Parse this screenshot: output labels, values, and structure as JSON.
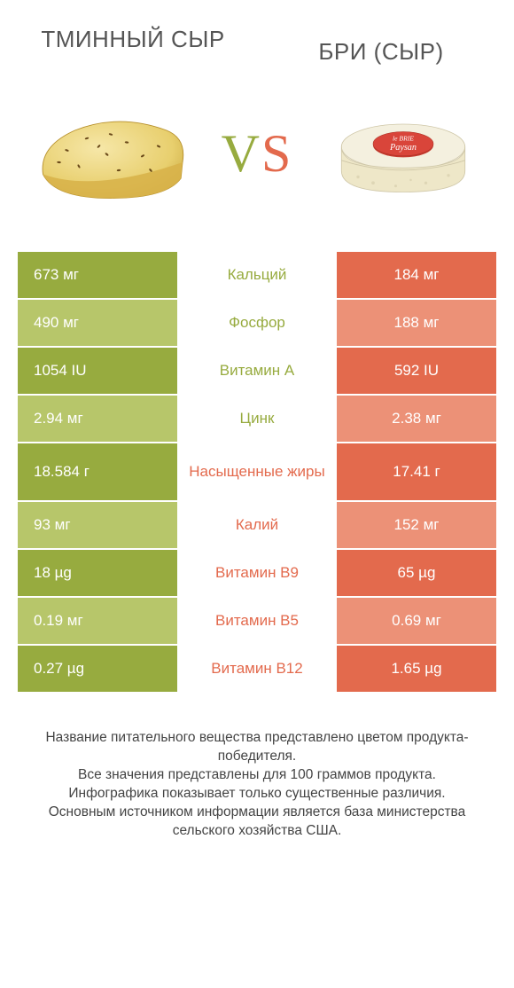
{
  "colors": {
    "green_dark": "#97ab3f",
    "green_light": "#b7c66a",
    "orange_dark": "#e36a4d",
    "orange_light": "#ec9177",
    "text_mid_green": "#97ab3f",
    "text_mid_orange": "#e36a4d"
  },
  "header": {
    "left_title": "ТМИННЫЙ СЫР",
    "right_title": "БРИ (СЫР)",
    "vs_v": "V",
    "vs_s": "S"
  },
  "rows": [
    {
      "label": "Кальций",
      "left": "673 мг",
      "right": "184 мг",
      "winner": "left"
    },
    {
      "label": "Фосфор",
      "left": "490 мг",
      "right": "188 мг",
      "winner": "left"
    },
    {
      "label": "Витамин A",
      "left": "1054 IU",
      "right": "592 IU",
      "winner": "left"
    },
    {
      "label": "Цинк",
      "left": "2.94 мг",
      "right": "2.38 мг",
      "winner": "left"
    },
    {
      "label": "Насыщенные жиры",
      "left": "18.584 г",
      "right": "17.41 г",
      "winner": "right",
      "tall": true
    },
    {
      "label": "Калий",
      "left": "93 мг",
      "right": "152 мг",
      "winner": "right"
    },
    {
      "label": "Витамин B9",
      "left": "18 µg",
      "right": "65 µg",
      "winner": "right"
    },
    {
      "label": "Витамин B5",
      "left": "0.19 мг",
      "right": "0.69 мг",
      "winner": "right"
    },
    {
      "label": "Витамин B12",
      "left": "0.27 µg",
      "right": "1.65 µg",
      "winner": "right"
    }
  ],
  "footer": {
    "line1": "Название питательного вещества представлено цветом продукта-победителя.",
    "line2": "Все значения представлены для 100 граммов продукта.",
    "line3": "Инфографика показывает только существенные различия.",
    "line4": "Основным источником информации является база министерства сельского хозяйства США."
  }
}
